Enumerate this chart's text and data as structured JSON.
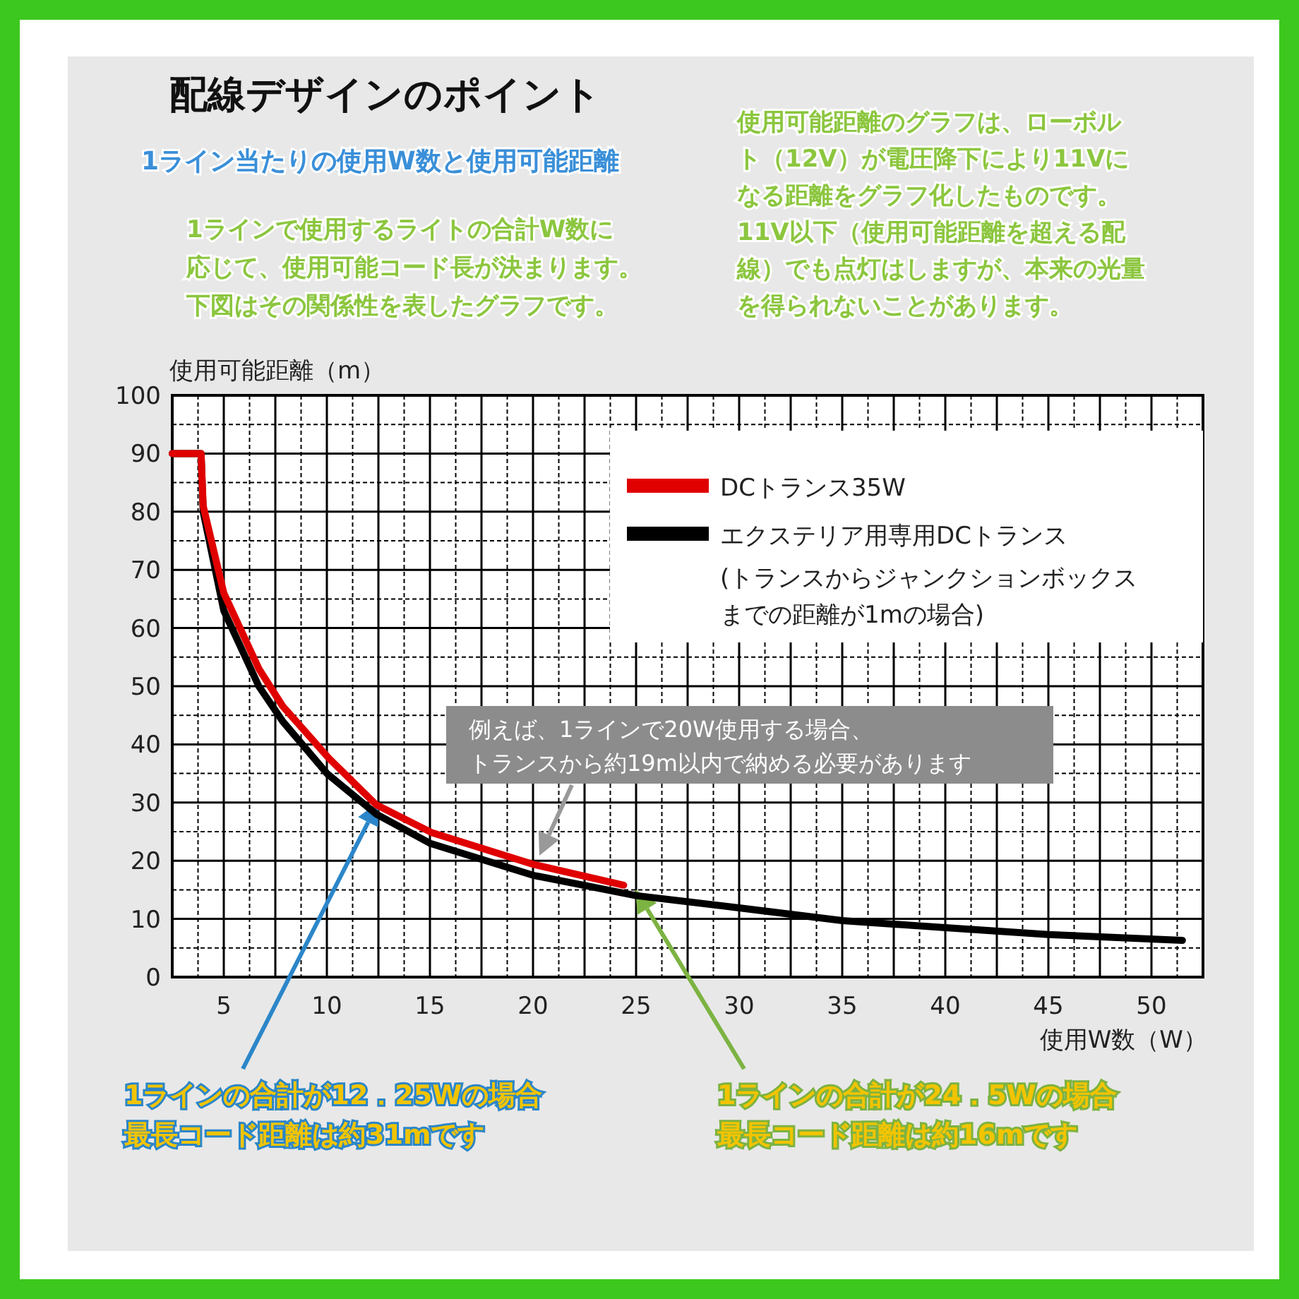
{
  "chart_data": {
    "type": "line",
    "title": "配線デザインのポイント",
    "subtitle": "1ライン当たりの使用W数と使用可能距離",
    "xlabel": "使用W数（W）",
    "ylabel": "使用可能距離（m）",
    "xlim": [
      2.5,
      52.5
    ],
    "ylim": [
      0,
      100
    ],
    "xticks": [
      5,
      10,
      15,
      20,
      25,
      30,
      35,
      40,
      45,
      50
    ],
    "yticks": [
      0,
      10,
      20,
      30,
      40,
      50,
      60,
      70,
      80,
      90,
      100
    ],
    "grid": true,
    "legend": "top right",
    "marker": "none",
    "line_style": "solid",
    "series": [
      {
        "name": "DCトランス35W",
        "color": "#e00000",
        "x": [
          2.5,
          3.9,
          4.0,
          5,
          6.7,
          7.85,
          10.1,
          12.4,
          15.1,
          20,
          24.4
        ],
        "values": [
          90,
          90,
          81,
          66,
          53,
          46.6,
          37.6,
          29.6,
          24.8,
          19.4,
          15.8
        ]
      },
      {
        "name": "エクステリア用専用DCトランス",
        "color": "#000000",
        "x": [
          2.5,
          3.9,
          4.0,
          5,
          6.7,
          7.85,
          10,
          12.4,
          15,
          20,
          25,
          30,
          35,
          40,
          45,
          51.5
        ],
        "values": [
          90,
          90,
          80,
          63,
          50,
          44,
          35,
          28,
          23,
          17.5,
          14,
          11.9,
          9.7,
          8.5,
          7.3,
          6.3
        ]
      }
    ],
    "annotations": [
      "1ラインで使用するライトの合計W数に応じて、使用可能コード長が決まります。下図はその関係性を表したグラフです。",
      "使用可能距離のグラフは、ローボルト（12V）が電圧降下により11Vになる距離をグラフ化したものです。11V以下（使用可能距離を超える配線）でも点灯はしますが、本来の光量を得られないことがあります。",
      "(トランスからジャンクションボックスまでの距離が1mの場合)",
      "例えば、1ラインで20W使用する場合、トランスから約19m以内で納める必要があります",
      "1ラインの合計が12．25Wの場合最長コード距離は約31mです",
      "1ラインの合計が24．5Wの場合最長コード距離は約16mです"
    ]
  }
}
